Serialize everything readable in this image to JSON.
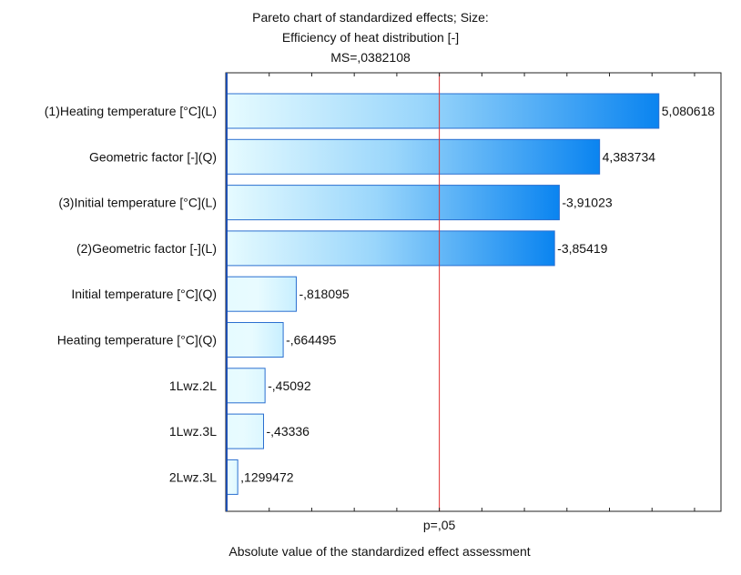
{
  "chart_data": {
    "type": "bar",
    "orientation": "horizontal",
    "title_lines": [
      "Pareto chart of standardized effects; Size:",
      "Efficiency of heat distribution [-]",
      "MS=,0382108"
    ],
    "categories": [
      "(1)Heating temperature [°C](L)",
      "Geometric factor [-](Q)",
      "(3)Initial temperature [°C](L)",
      "(2)Geometric factor [-](L)",
      "Initial temperature [°C](Q)",
      "Heating temperature [°C](Q)",
      "1Lwz.2L",
      "1Lwz.3L",
      "2Lwz.3L"
    ],
    "values": [
      5.080618,
      4.383734,
      3.91023,
      3.85419,
      0.818095,
      0.664495,
      0.45092,
      0.43336,
      0.1299472
    ],
    "value_labels": [
      "5,080618",
      "4,383734",
      "-3,91023",
      "-3,85419",
      "-,818095",
      "-,664495",
      "-,45092",
      "-,43336",
      ",1299472"
    ],
    "reference_line": {
      "value": 2.5,
      "label": "p=,05"
    },
    "xlabel": "Absolute value of the standardized effect assessment",
    "xlim": [
      0,
      5.8
    ],
    "colors": {
      "reference": "#e03030",
      "bar_dark": "#0a84f0",
      "bar_light": "#e6fbff",
      "bar_border": "#2a6fd0"
    }
  }
}
